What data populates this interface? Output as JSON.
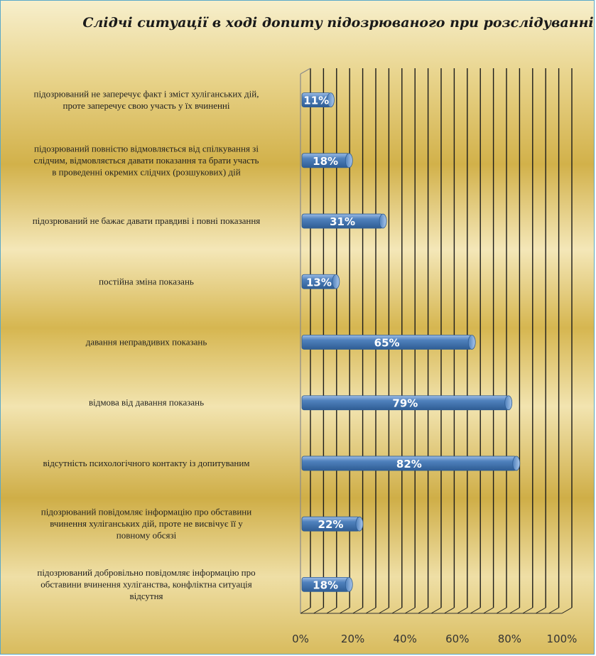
{
  "chart_data": {
    "type": "bar",
    "orientation": "horizontal",
    "title": "Слідчі ситуації в ході допиту підозрюваного при розслідуванні",
    "xlim": [
      0,
      100
    ],
    "x_ticks": [
      "0%",
      "20%",
      "40%",
      "60%",
      "80%",
      "100%"
    ],
    "x_minor_step": 5,
    "grid": true,
    "value_unit": "%",
    "categories": [
      "підозрюваний не заперечує факт і зміст хуліганських дій, проте заперечує свою участь у їх вчиненні",
      "підозрюваний повністю відмовляється від спілкування зі слідчим, відмовляється давати показання та брати участь в проведенні окремих слідчих (розшукових) дій",
      "підозрюваний не бажає давати правдиві і повні показання",
      "постійна зміна показань",
      "давання неправдивих показань",
      "відмова від давання показань",
      "відсутність психологічного контакту із допитуваним",
      "підозрюваний повідомляє інформацію про обставини вчинення хуліганських дій, проте не висвічує її у повному обсязі",
      "підозрюваний добровільно повідомляє інформацію про обставини вчинення хуліганства, конфліктна ситуація відсутня"
    ],
    "category_lines": [
      [
        "підозрюваний не заперечує факт і зміст хуліганських дій,",
        "проте заперечує свою участь у їх вчиненні"
      ],
      [
        "підозрюваний повністю відмовляється від спілкування зі",
        "слідчим, відмовляється давати показання та брати участь",
        "в проведенні окремих слідчих (розшукових) дій"
      ],
      [
        "підозрюваний не бажає давати правдиві і повні показання"
      ],
      [
        "постійна зміна показань"
      ],
      [
        "давання неправдивих показань"
      ],
      [
        "відмова від давання показань"
      ],
      [
        "відсутність психологічного контакту із допитуваним"
      ],
      [
        "підозрюваний повідомляє інформацію про обставини",
        "вчинення хуліганських дій, проте не висвічує її у",
        "повному обсязі"
      ],
      [
        "підозрюваний добровільно повідомляє інформацію про",
        "обставини вчинення хуліганства, конфліктна ситуація",
        "відсутня"
      ]
    ],
    "values": [
      11,
      18,
      31,
      13,
      65,
      79,
      82,
      22,
      18
    ],
    "data_labels": [
      "11%",
      "18%",
      "31%",
      "13%",
      "65%",
      "79%",
      "82%",
      "22%",
      "18%"
    ],
    "colors": {
      "bar": "#4f81bd",
      "bar_dark": "#2f5d94",
      "bar_light": "#8fb4e0",
      "grid": "#1a1a1a",
      "frame": "#5aa9c9",
      "background_gold": "#d4b247",
      "background_light": "#f6ecc4"
    }
  }
}
